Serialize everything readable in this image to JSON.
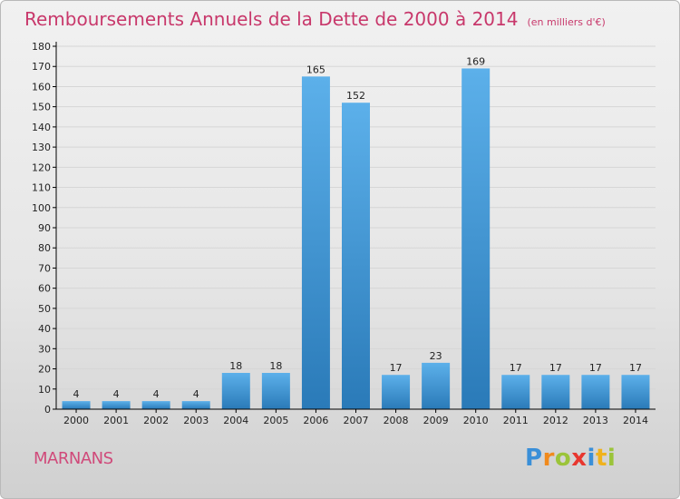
{
  "header": {
    "title": "Remboursements Annuels de la Dette de 2000 à 2014",
    "unit": "(en milliers d'€)"
  },
  "footer": {
    "commune": "MARNANS",
    "logo_letters": [
      "P",
      "r",
      "o",
      "x",
      "i",
      "t",
      "i"
    ]
  },
  "colors": {
    "title": "#c8386b",
    "bar_light": "#5cb0ea",
    "bar_dark": "#2a7ab8",
    "axis": "#000000",
    "grid": "#d6d6d6"
  },
  "chart_data": {
    "type": "bar",
    "categories": [
      "2000",
      "2001",
      "2002",
      "2003",
      "2004",
      "2005",
      "2006",
      "2007",
      "2008",
      "2009",
      "2010",
      "2011",
      "2012",
      "2013",
      "2014"
    ],
    "values": [
      4,
      4,
      4,
      4,
      18,
      18,
      165,
      152,
      17,
      23,
      169,
      17,
      17,
      17,
      17
    ],
    "title": "Remboursements Annuels de la Dette de 2000 à 2014",
    "subtitle": "(en milliers d'€)",
    "ylim": [
      0,
      180
    ],
    "yticks": [
      0,
      10,
      20,
      30,
      40,
      50,
      60,
      70,
      80,
      90,
      100,
      110,
      120,
      130,
      140,
      150,
      160,
      170,
      180
    ],
    "data_labels": true,
    "grid": true
  }
}
